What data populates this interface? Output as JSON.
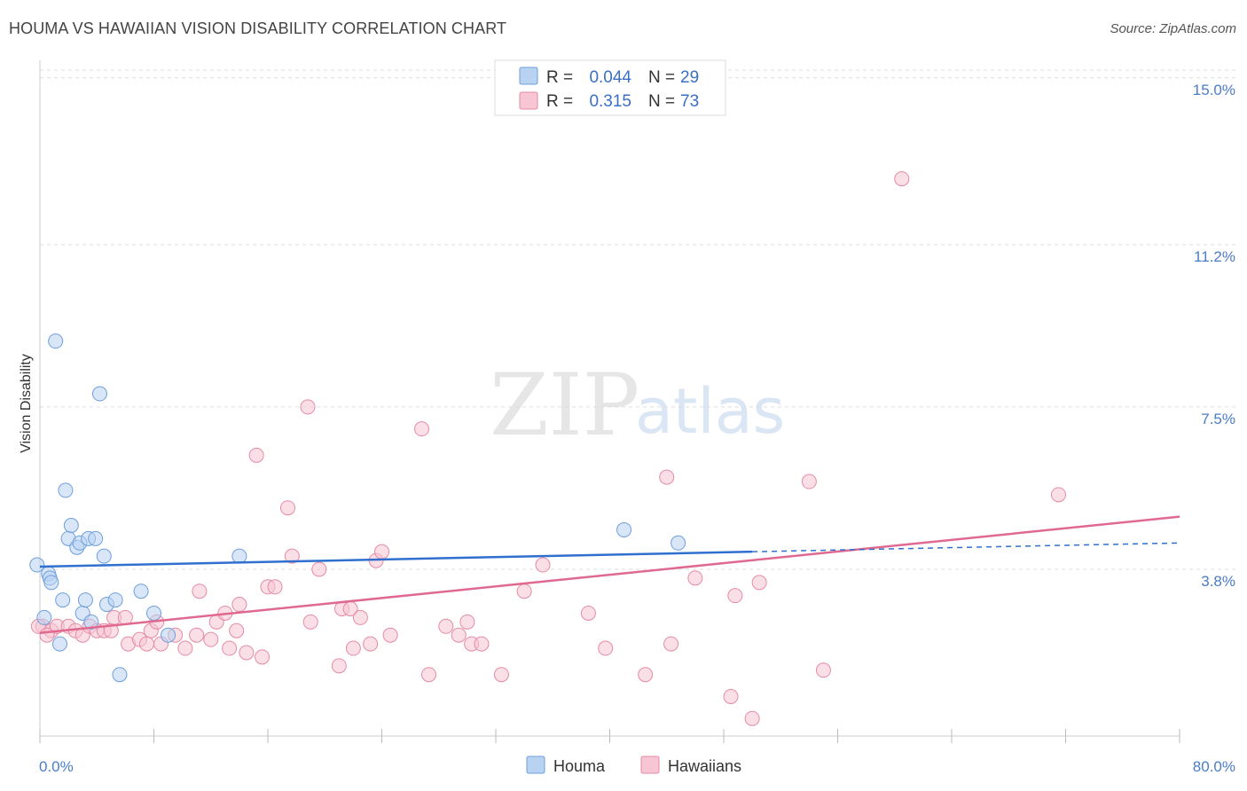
{
  "title": "HOUMA VS HAWAIIAN VISION DISABILITY CORRELATION CHART",
  "source": "Source: ZipAtlas.com",
  "watermark": {
    "zip": "ZIP",
    "atlas": "atlas"
  },
  "colors": {
    "houma_fill": "#b8d2f2",
    "houma_stroke": "#6f9fdb",
    "houma_line": "#2f6fce",
    "hawaiian_fill": "#f7c5d3",
    "hawaiian_stroke": "#e58ba6",
    "hawaiian_line": "#e0698f",
    "tick_text": "#4a7cc8",
    "grid": "#dddddd"
  },
  "legend": {
    "rows": [
      {
        "r_label": "R =",
        "r_value": "0.044",
        "n_label": "N =",
        "n_value": "29"
      },
      {
        "r_label": "R =",
        "r_value": "0.315",
        "n_label": "N =",
        "n_value": "73"
      }
    ]
  },
  "chart_data": {
    "type": "scatter",
    "title": "HOUMA VS HAWAIIAN VISION DISABILITY CORRELATION CHART",
    "xlabel": "",
    "ylabel": "Vision Disability",
    "xlim": [
      0,
      80
    ],
    "ylim": [
      0,
      15.4
    ],
    "x_tick_labels": [
      "0.0%",
      "80.0%"
    ],
    "y_ticks": [
      {
        "value": 3.8,
        "label": "3.8%"
      },
      {
        "value": 7.5,
        "label": "7.5%"
      },
      {
        "value": 11.2,
        "label": "11.2%"
      },
      {
        "value": 15.0,
        "label": "15.0%"
      }
    ],
    "legend_position": "bottom-center",
    "series": [
      {
        "name": "Houma",
        "R": 0.044,
        "N": 29,
        "trend": {
          "x0": 0,
          "y0": 3.86,
          "x1": 50,
          "y1": 4.2,
          "dash_to_x": 80,
          "dash_to_y": 4.4
        },
        "points": [
          [
            0.3,
            2.7
          ],
          [
            0.6,
            3.7
          ],
          [
            0.7,
            3.6
          ],
          [
            0.8,
            3.5
          ],
          [
            1.1,
            9.0
          ],
          [
            1.4,
            2.1
          ],
          [
            1.6,
            3.1
          ],
          [
            1.8,
            5.6
          ],
          [
            2.0,
            4.5
          ],
          [
            2.2,
            4.8
          ],
          [
            2.6,
            4.3
          ],
          [
            2.8,
            4.4
          ],
          [
            3.0,
            2.8
          ],
          [
            3.2,
            3.1
          ],
          [
            3.4,
            4.5
          ],
          [
            3.6,
            2.6
          ],
          [
            3.9,
            4.5
          ],
          [
            4.2,
            7.8
          ],
          [
            4.5,
            4.1
          ],
          [
            4.7,
            3.0
          ],
          [
            5.3,
            3.1
          ],
          [
            5.6,
            1.4
          ],
          [
            7.1,
            3.3
          ],
          [
            8.0,
            2.8
          ],
          [
            9.0,
            2.3
          ],
          [
            14.0,
            4.1
          ],
          [
            41.0,
            4.7
          ],
          [
            44.8,
            4.4
          ],
          [
            -0.2,
            3.9
          ]
        ]
      },
      {
        "name": "Hawaiians",
        "R": 0.315,
        "N": 73,
        "trend": {
          "x0": 0,
          "y0": 2.35,
          "x1": 80,
          "y1": 5.0
        },
        "points": [
          [
            0.2,
            2.5
          ],
          [
            0.8,
            2.4
          ],
          [
            1.2,
            2.5
          ],
          [
            2.0,
            2.5
          ],
          [
            2.5,
            2.4
          ],
          [
            3.0,
            2.3
          ],
          [
            3.5,
            2.5
          ],
          [
            4.0,
            2.4
          ],
          [
            4.5,
            2.4
          ],
          [
            5.0,
            2.4
          ],
          [
            5.2,
            2.7
          ],
          [
            6.0,
            2.7
          ],
          [
            6.2,
            2.1
          ],
          [
            7.0,
            2.2
          ],
          [
            7.5,
            2.1
          ],
          [
            7.8,
            2.4
          ],
          [
            8.2,
            2.6
          ],
          [
            8.5,
            2.1
          ],
          [
            9.5,
            2.3
          ],
          [
            10.2,
            2.0
          ],
          [
            11.0,
            2.3
          ],
          [
            11.2,
            3.3
          ],
          [
            12.0,
            2.2
          ],
          [
            12.4,
            2.6
          ],
          [
            13.0,
            2.8
          ],
          [
            13.3,
            2.0
          ],
          [
            13.8,
            2.4
          ],
          [
            14.0,
            3.0
          ],
          [
            14.5,
            1.9
          ],
          [
            15.2,
            6.4
          ],
          [
            15.6,
            1.8
          ],
          [
            16.0,
            3.4
          ],
          [
            16.5,
            3.4
          ],
          [
            17.4,
            5.2
          ],
          [
            17.7,
            4.1
          ],
          [
            18.8,
            7.5
          ],
          [
            19.0,
            2.6
          ],
          [
            19.6,
            3.8
          ],
          [
            21.0,
            1.6
          ],
          [
            21.2,
            2.9
          ],
          [
            21.8,
            2.9
          ],
          [
            22.0,
            2.0
          ],
          [
            22.5,
            2.7
          ],
          [
            23.2,
            2.1
          ],
          [
            23.6,
            4.0
          ],
          [
            24.0,
            4.2
          ],
          [
            24.6,
            2.3
          ],
          [
            26.8,
            7.0
          ],
          [
            27.3,
            1.4
          ],
          [
            28.5,
            2.5
          ],
          [
            29.4,
            2.3
          ],
          [
            30.0,
            2.6
          ],
          [
            30.3,
            2.1
          ],
          [
            31.0,
            2.1
          ],
          [
            32.4,
            1.4
          ],
          [
            34.0,
            3.3
          ],
          [
            35.3,
            3.9
          ],
          [
            38.5,
            2.8
          ],
          [
            39.7,
            2.0
          ],
          [
            42.5,
            1.4
          ],
          [
            44.0,
            5.9
          ],
          [
            44.3,
            2.1
          ],
          [
            46.0,
            3.6
          ],
          [
            48.5,
            0.9
          ],
          [
            48.8,
            3.2
          ],
          [
            50.0,
            0.4
          ],
          [
            50.5,
            3.5
          ],
          [
            54.0,
            5.8
          ],
          [
            55.0,
            1.5
          ],
          [
            60.5,
            12.7
          ],
          [
            71.5,
            5.5
          ],
          [
            -0.1,
            2.5
          ],
          [
            0.5,
            2.3
          ]
        ]
      }
    ]
  }
}
